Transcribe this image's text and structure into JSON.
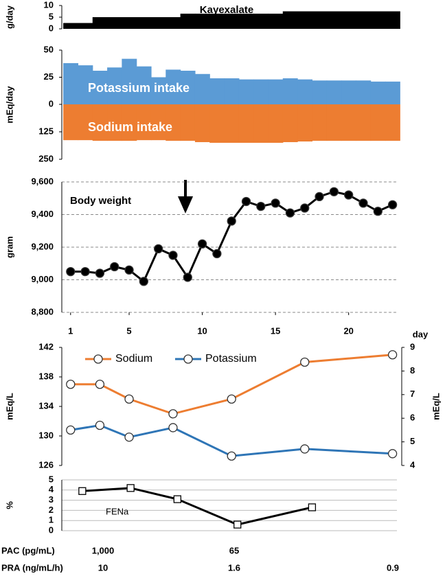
{
  "chart_data": [
    {
      "type": "step",
      "annotation": "Kayexalate",
      "ylabel": "g/day",
      "color": "#000000",
      "x": [
        1,
        2,
        3,
        4,
        5,
        6,
        7,
        8,
        9,
        10,
        11,
        12,
        13,
        14,
        15,
        16,
        17,
        18,
        19,
        20,
        21,
        22,
        23
      ],
      "values": [
        2.5,
        2.5,
        5,
        5,
        5,
        5,
        5,
        5,
        6.5,
        6.5,
        6.5,
        6.5,
        6.5,
        6.5,
        6.5,
        7.5,
        7.5,
        7.5,
        7.5,
        7.5,
        7.5,
        7.5,
        7.5
      ],
      "xlim": [
        0.4,
        23.3
      ],
      "ylim": [
        0,
        10
      ],
      "yticks": [
        0,
        5,
        10
      ]
    },
    {
      "type": "bar",
      "ylabel": "mEq/day",
      "x": [
        1,
        2,
        3,
        4,
        5,
        6,
        7,
        8,
        9,
        10,
        11,
        12,
        13,
        14,
        15,
        16,
        17,
        18,
        19,
        20,
        21,
        22,
        23
      ],
      "series": [
        {
          "name": "Potassium intake",
          "color": "#5b9bd5",
          "values": [
            38,
            36,
            31,
            34,
            42,
            35,
            25,
            32,
            31,
            28,
            24,
            24,
            23,
            23,
            23,
            24,
            23,
            22,
            22,
            22,
            22,
            21,
            21
          ]
        },
        {
          "name": "Sodium intake",
          "color": "#ed7d31",
          "axis": "y2",
          "values": [
            163,
            163,
            166,
            166,
            166,
            163,
            163,
            166,
            166,
            172,
            175,
            175,
            175,
            175,
            175,
            172,
            169,
            166,
            166,
            166,
            166,
            166,
            166
          ]
        }
      ],
      "xlim": [
        0.4,
        23.3
      ],
      "ylim": [
        0,
        50
      ],
      "yticks": [
        0,
        25,
        50
      ],
      "y2lim": [
        0,
        250
      ],
      "y2ticks": [
        125,
        250
      ]
    },
    {
      "type": "line",
      "annotation": "Body weight",
      "ylabel": "gram",
      "xlabel": "day",
      "marker": "circle",
      "marker_fill": "#000000",
      "x": [
        1,
        2,
        3,
        4,
        5,
        6,
        7,
        8,
        9,
        10,
        11,
        12,
        13,
        14,
        15,
        16,
        17,
        18,
        19,
        20,
        21,
        22,
        23
      ],
      "series": [
        {
          "color": "#000000",
          "values": [
            9050,
            9050,
            9040,
            9080,
            9060,
            8990,
            9190,
            9150,
            9015,
            9220,
            9160,
            9360,
            9480,
            9450,
            9470,
            9410,
            9440,
            9510,
            9540,
            9520,
            9470,
            9420,
            9460
          ]
        }
      ],
      "xlim": [
        0.4,
        23.3
      ],
      "xticks": [
        1,
        5,
        10,
        15,
        20
      ],
      "ylim": [
        8800,
        9600
      ],
      "yticks": [
        {
          "value": 8800,
          "label": "8,800"
        },
        {
          "value": 9000,
          "label": "9,000"
        },
        {
          "value": 9200,
          "label": "9,200"
        },
        {
          "value": 9400,
          "label": "9,400"
        },
        {
          "value": 9600,
          "label": "9,600"
        }
      ],
      "grid": true
    },
    {
      "type": "line",
      "ylabel": "mEq/L",
      "y2label": "mEq/L",
      "marker": "circle",
      "marker_fill": "#ffffff",
      "legend": "top",
      "x": [
        1,
        3,
        5,
        8,
        12,
        17,
        23
      ],
      "series": [
        {
          "name": "Sodium",
          "color": "#ed7d31",
          "values": [
            137,
            137,
            135,
            133,
            135,
            140,
            141
          ]
        },
        {
          "name": "Potassium",
          "color": "#2e75b6",
          "axis": "y2",
          "values": [
            5.5,
            5.7,
            5.2,
            5.6,
            4.4,
            4.7,
            4.5
          ]
        }
      ],
      "xlim": [
        0.4,
        23.3
      ],
      "ylim": [
        126,
        142
      ],
      "yticks": [
        126,
        130,
        134,
        138,
        142
      ],
      "y2lim": [
        4,
        9
      ],
      "y2ticks": [
        4,
        5,
        6,
        7,
        8,
        9
      ]
    },
    {
      "type": "line",
      "annotation": "FENa",
      "ylabel": "%",
      "marker": "square",
      "marker_fill": "#ffffff",
      "x": [
        1.8,
        5.1,
        8.3,
        12.4,
        17.5
      ],
      "series": [
        {
          "color": "#000000",
          "values": [
            3.9,
            4.2,
            3.1,
            0.6,
            2.3
          ]
        }
      ],
      "xlim": [
        0.4,
        23.3
      ],
      "ylim": [
        0,
        5
      ],
      "yticks": [
        0,
        1,
        2,
        3,
        4,
        5
      ],
      "grid": true
    }
  ],
  "table": {
    "rows": [
      [
        "PAC  (pg/mL)",
        "1,000",
        "65",
        null
      ],
      [
        "PRA (ng/mL/h)",
        "10",
        "1.6",
        "0.9"
      ]
    ]
  }
}
